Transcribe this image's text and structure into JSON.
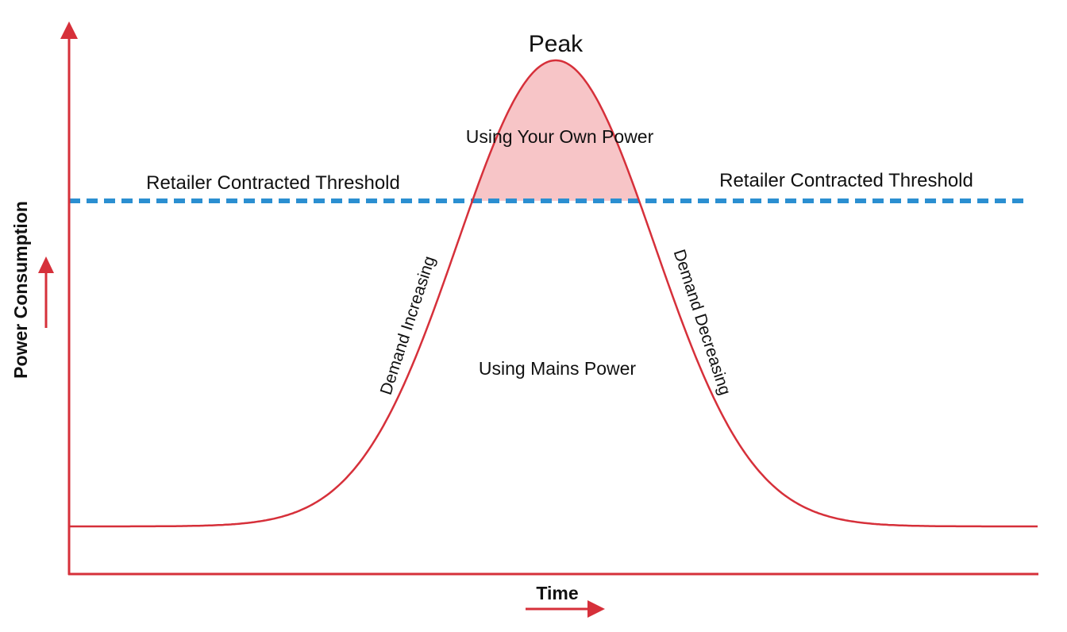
{
  "title": "Peak",
  "regions": {
    "above": "Using Your Own Power",
    "below": "Using Mains Power"
  },
  "threshold": {
    "left_label": "Retailer Contracted Threshold",
    "right_label": "Retailer Contracted Threshold"
  },
  "slopes": {
    "rising": "Demand Increasing",
    "falling": "Demand Decreasing"
  },
  "axes": {
    "y_label": "Power Consumption",
    "x_label": "Time"
  }
}
